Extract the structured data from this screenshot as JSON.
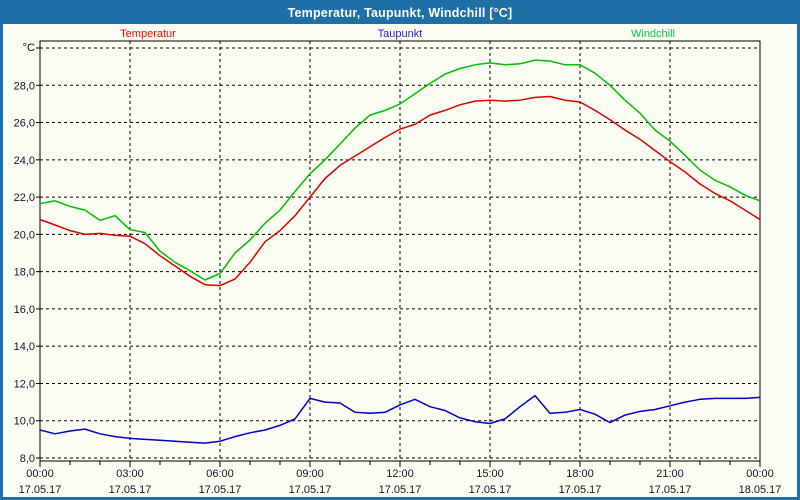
{
  "window": {
    "title": "Temperatur, Taupunkt, Windchill [°C]"
  },
  "legend": {
    "items": [
      {
        "label": "Temperatur",
        "color": "#ff0000"
      },
      {
        "label": "Taupunkt",
        "color": "#2222cc"
      },
      {
        "label": "Windchill",
        "color": "#00cc44"
      }
    ]
  },
  "colors": {
    "titlebar": "#1d6fa5",
    "border": "#1d6fa5",
    "background": "#fcfdf2",
    "grid": "#000000",
    "tick_text": "#10142a"
  },
  "chart_data": {
    "type": "line",
    "title": "Temperatur, Taupunkt, Windchill [°C]",
    "unit_label": "°C",
    "grid": "on",
    "legend_position": "top",
    "x": {
      "start_hours": 0,
      "step_hours": 0.5,
      "end_hours": 24
    },
    "x_ticks": [
      {
        "time": "00:00",
        "date": "17.05.17"
      },
      {
        "time": "03:00",
        "date": "17.05.17"
      },
      {
        "time": "06:00",
        "date": "17.05.17"
      },
      {
        "time": "09:00",
        "date": "17.05.17"
      },
      {
        "time": "12:00",
        "date": "17.05.17"
      },
      {
        "time": "15:00",
        "date": "17.05.17"
      },
      {
        "time": "18:00",
        "date": "17.05.17"
      },
      {
        "time": "21:00",
        "date": "17.05.17"
      },
      {
        "time": "00:00",
        "date": "18.05.17"
      }
    ],
    "y_axis": {
      "range": [
        7.8,
        30.4
      ],
      "gridlines": [
        8,
        10,
        12,
        14,
        16,
        18,
        20,
        22,
        24,
        26,
        28,
        30
      ],
      "labeled_max": 28,
      "decimal_separator": ","
    },
    "series": [
      {
        "name": "Temperatur",
        "color": "#dd0000",
        "values": [
          20.8,
          20.5,
          20.2,
          20.0,
          20.05,
          19.95,
          19.9,
          19.5,
          18.85,
          18.3,
          17.75,
          17.3,
          17.25,
          17.6,
          18.5,
          19.6,
          20.2,
          21.0,
          22.0,
          23.0,
          23.7,
          24.2,
          24.7,
          25.2,
          25.65,
          25.9,
          26.4,
          26.65,
          26.95,
          27.15,
          27.2,
          27.15,
          27.2,
          27.35,
          27.4,
          27.2,
          27.1,
          26.65,
          26.15,
          25.6,
          25.1,
          24.5,
          23.9,
          23.35,
          22.7,
          22.2,
          21.8,
          21.3,
          20.8
        ]
      },
      {
        "name": "Taupunkt",
        "color": "#0000c8",
        "values": [
          9.5,
          9.3,
          9.45,
          9.55,
          9.3,
          9.15,
          9.05,
          9.0,
          8.95,
          8.9,
          8.85,
          8.8,
          8.9,
          9.15,
          9.35,
          9.5,
          9.75,
          10.1,
          11.2,
          11.0,
          10.95,
          10.45,
          10.4,
          10.45,
          10.85,
          11.15,
          10.75,
          10.55,
          10.15,
          9.95,
          9.85,
          10.1,
          10.75,
          11.35,
          10.4,
          10.45,
          10.6,
          10.35,
          9.9,
          10.3,
          10.5,
          10.6,
          10.8,
          11.0,
          11.15,
          11.2,
          11.2,
          11.2,
          11.25
        ]
      },
      {
        "name": "Windchill",
        "color": "#00c000",
        "values": [
          21.65,
          21.8,
          21.5,
          21.3,
          20.75,
          21.0,
          20.25,
          20.1,
          19.1,
          18.5,
          18.05,
          17.55,
          17.9,
          19.0,
          19.7,
          20.6,
          21.3,
          22.3,
          23.25,
          24.0,
          24.85,
          25.7,
          26.4,
          26.65,
          27.0,
          27.55,
          28.1,
          28.6,
          28.9,
          29.1,
          29.2,
          29.1,
          29.15,
          29.35,
          29.3,
          29.1,
          29.1,
          28.65,
          28.0,
          27.2,
          26.5,
          25.6,
          25.0,
          24.25,
          23.45,
          22.9,
          22.55,
          22.1,
          21.8
        ]
      }
    ]
  }
}
